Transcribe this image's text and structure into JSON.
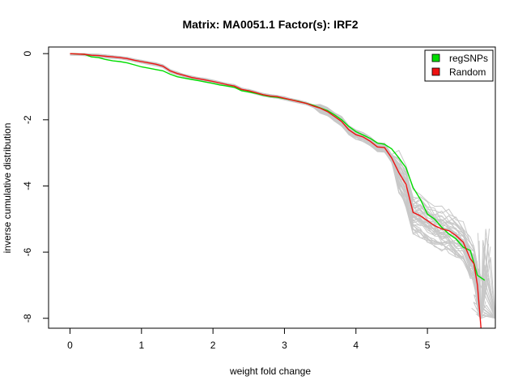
{
  "chart_data": {
    "type": "line",
    "title": "Matrix: MA0051.1 Factor(s): IRF2",
    "xlabel": "weight fold change",
    "ylabel": "inverse cumulative distribution",
    "xlim": [
      -0.3,
      5.95
    ],
    "ylim": [
      -8.3,
      0.2
    ],
    "x_ticks": [
      "0",
      "1",
      "2",
      "3",
      "4",
      "5"
    ],
    "y_ticks": [
      "0",
      "-2",
      "-4",
      "-6",
      "-8"
    ],
    "grid": false,
    "legend_position": "top-right",
    "series": [
      {
        "name": "regSNPs",
        "color": "#00dd00",
        "x": [
          0.0,
          0.2,
          0.3,
          0.4,
          0.5,
          0.6,
          0.7,
          0.8,
          0.9,
          1.0,
          1.1,
          1.2,
          1.3,
          1.4,
          1.5,
          1.6,
          1.7,
          1.8,
          1.9,
          2.0,
          2.1,
          2.2,
          2.3,
          2.4,
          2.5,
          2.6,
          2.7,
          2.8,
          2.9,
          3.0,
          3.1,
          3.2,
          3.3,
          3.4,
          3.5,
          3.6,
          3.7,
          3.8,
          3.9,
          4.0,
          4.1,
          4.2,
          4.3,
          4.4,
          4.5,
          4.6,
          4.7,
          4.8,
          4.9,
          5.0,
          5.1,
          5.2,
          5.3,
          5.4,
          5.5,
          5.6,
          5.7,
          5.8
        ],
        "y": [
          0.0,
          -0.02,
          -0.1,
          -0.12,
          -0.18,
          -0.22,
          -0.24,
          -0.28,
          -0.34,
          -0.4,
          -0.44,
          -0.48,
          -0.52,
          -0.62,
          -0.7,
          -0.74,
          -0.78,
          -0.82,
          -0.86,
          -0.9,
          -0.95,
          -0.98,
          -1.02,
          -1.12,
          -1.16,
          -1.2,
          -1.26,
          -1.3,
          -1.32,
          -1.36,
          -1.4,
          -1.44,
          -1.5,
          -1.56,
          -1.64,
          -1.72,
          -1.85,
          -2.0,
          -2.2,
          -2.36,
          -2.46,
          -2.56,
          -2.7,
          -2.74,
          -2.88,
          -3.15,
          -3.45,
          -4.05,
          -4.4,
          -4.85,
          -5.0,
          -5.25,
          -5.45,
          -5.6,
          -5.85,
          -5.95,
          -6.7,
          -6.85
        ]
      },
      {
        "name": "Random",
        "color": "#ee1111",
        "x": [
          0.0,
          0.2,
          0.3,
          0.4,
          0.5,
          0.6,
          0.7,
          0.8,
          0.9,
          1.0,
          1.1,
          1.2,
          1.3,
          1.4,
          1.5,
          1.6,
          1.7,
          1.8,
          1.9,
          2.0,
          2.1,
          2.2,
          2.3,
          2.4,
          2.5,
          2.6,
          2.7,
          2.8,
          2.9,
          3.0,
          3.1,
          3.2,
          3.3,
          3.4,
          3.5,
          3.6,
          3.7,
          3.8,
          3.9,
          4.0,
          4.1,
          4.2,
          4.3,
          4.4,
          4.5,
          4.6,
          4.7,
          4.8,
          4.9,
          5.0,
          5.1,
          5.2,
          5.3,
          5.4,
          5.5,
          5.6,
          5.65,
          5.7,
          5.75
        ],
        "y": [
          0.0,
          -0.02,
          -0.05,
          -0.06,
          -0.08,
          -0.1,
          -0.12,
          -0.15,
          -0.2,
          -0.24,
          -0.28,
          -0.32,
          -0.38,
          -0.52,
          -0.6,
          -0.66,
          -0.72,
          -0.76,
          -0.8,
          -0.84,
          -0.89,
          -0.94,
          -0.98,
          -1.08,
          -1.12,
          -1.18,
          -1.24,
          -1.28,
          -1.3,
          -1.35,
          -1.4,
          -1.45,
          -1.5,
          -1.58,
          -1.65,
          -1.75,
          -1.9,
          -2.05,
          -2.3,
          -2.45,
          -2.52,
          -2.65,
          -2.82,
          -2.84,
          -3.15,
          -3.6,
          -3.95,
          -4.8,
          -4.9,
          -5.05,
          -5.2,
          -5.3,
          -5.35,
          -5.5,
          -5.7,
          -6.2,
          -6.35,
          -7.0,
          -8.3
        ]
      }
    ],
    "background_random_curves": {
      "color": "#c8c8c8",
      "count": 40,
      "envelope": "random permutation curves shown in light grey behind the two series"
    }
  }
}
